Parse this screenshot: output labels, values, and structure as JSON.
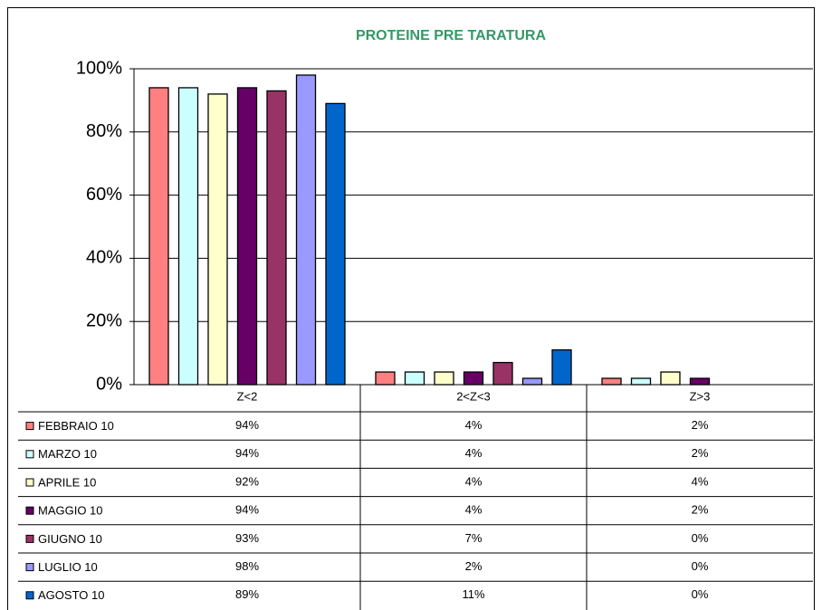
{
  "chart_data": {
    "type": "bar",
    "title": "PROTEINE PRE TARATURA",
    "categories": [
      "Z<2",
      "2<Z<3",
      "Z>3"
    ],
    "series": [
      {
        "name": "FEBBRAIO 10",
        "color": "#ff8080",
        "values": [
          94,
          4,
          2
        ],
        "value_labels": [
          "94%",
          "4%",
          "2%"
        ]
      },
      {
        "name": "MARZO 10",
        "color": "#ccffff",
        "values": [
          94,
          4,
          2
        ],
        "value_labels": [
          "94%",
          "4%",
          "2%"
        ]
      },
      {
        "name": "APRILE 10",
        "color": "#ffffcc",
        "values": [
          92,
          4,
          4
        ],
        "value_labels": [
          "92%",
          "4%",
          "4%"
        ]
      },
      {
        "name": "MAGGIO 10",
        "color": "#660066",
        "values": [
          94,
          4,
          2
        ],
        "value_labels": [
          "94%",
          "4%",
          "2%"
        ]
      },
      {
        "name": "GIUGNO 10",
        "color": "#993366",
        "values": [
          93,
          7,
          0
        ],
        "value_labels": [
          "93%",
          "7%",
          "0%"
        ]
      },
      {
        "name": "LUGLIO 10",
        "color": "#9999ff",
        "values": [
          98,
          2,
          0
        ],
        "value_labels": [
          "98%",
          "2%",
          "0%"
        ]
      },
      {
        "name": "AGOSTO 10",
        "color": "#0066cc",
        "values": [
          89,
          11,
          0
        ],
        "value_labels": [
          "89%",
          "11%",
          "0%"
        ]
      }
    ],
    "ylim": [
      0,
      100
    ],
    "yticks": [
      {
        "value": 0,
        "label": "0%"
      },
      {
        "value": 20,
        "label": "20%"
      },
      {
        "value": 40,
        "label": "40%"
      },
      {
        "value": 60,
        "label": "60%"
      },
      {
        "value": 80,
        "label": "80%"
      },
      {
        "value": 100,
        "label": "100%"
      }
    ],
    "grid": true
  }
}
